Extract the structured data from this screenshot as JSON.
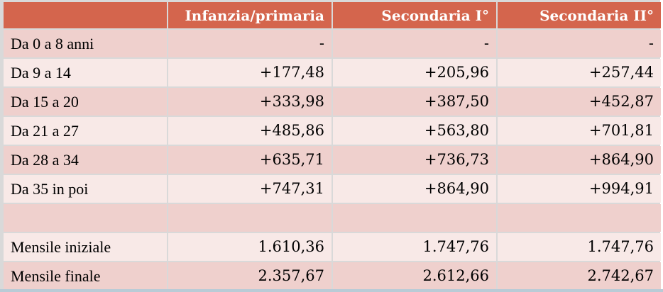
{
  "table": {
    "headers": [
      "",
      "Infanzia/primaria",
      "Secondaria I°",
      "Secondaria II°"
    ],
    "rows": [
      {
        "label": "Da 0 a 8 anni",
        "values": [
          "-",
          "-",
          "-"
        ]
      },
      {
        "label": "Da 9 a 14",
        "values": [
          "+177,48",
          "+205,96",
          "+257,44"
        ]
      },
      {
        "label": "Da 15 a 20",
        "values": [
          "+333,98",
          "+387,50",
          "+452,87"
        ]
      },
      {
        "label": "Da 21 a 27",
        "values": [
          "+485,86",
          "+563,80",
          "+701,81"
        ]
      },
      {
        "label": "Da 28 a 34",
        "values": [
          "+635,71",
          "+736,73",
          "+864,90"
        ]
      },
      {
        "label": "Da 35 in poi",
        "values": [
          "+747,31",
          "+864,90",
          "+994,91"
        ]
      },
      {
        "label": "",
        "values": [
          "",
          "",
          ""
        ]
      },
      {
        "label": "Mensile iniziale",
        "values": [
          "1.610,36",
          "1.747,76",
          "1.747,76"
        ]
      },
      {
        "label": "Mensile finale",
        "values": [
          "2.357,67",
          "2.612,66",
          "2.742,67"
        ]
      }
    ]
  },
  "colors": {
    "header_bg": "#d4654d",
    "row_dark": "#efd0cd",
    "row_light": "#f8e9e7"
  }
}
